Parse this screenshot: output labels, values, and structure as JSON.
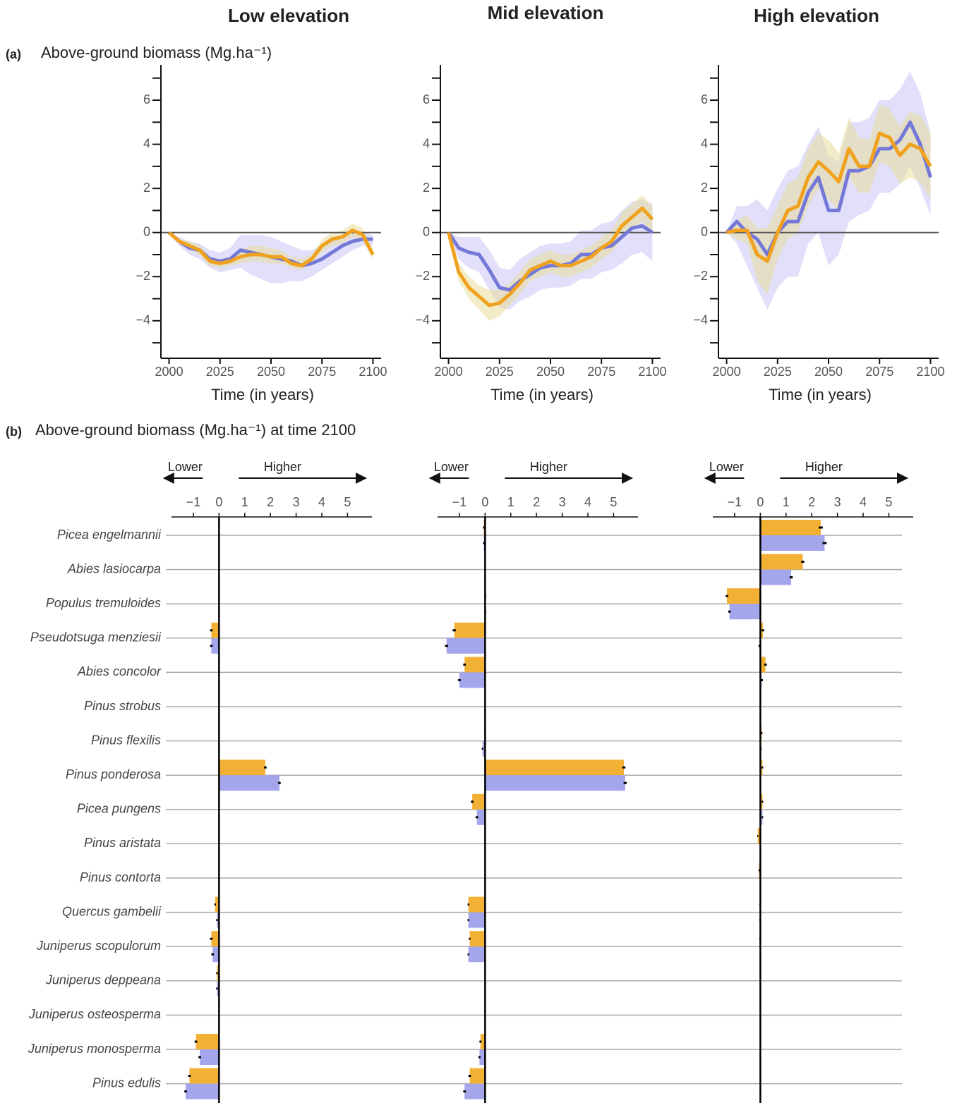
{
  "columns": [
    "Low elevation",
    "Mid elevation",
    "High elevation"
  ],
  "panels": {
    "a": {
      "label": "(a)",
      "title": "Above-ground biomass (Mg.ha⁻¹)"
    },
    "b": {
      "label": "(b)",
      "title": "Above-ground biomass (Mg.ha⁻¹) at time 2100"
    }
  },
  "chart_data": [
    {
      "type": "line",
      "xlabel": "Time (in years)",
      "xlim": [
        1996,
        2104
      ],
      "xticks": [
        2000,
        2025,
        2050,
        2075,
        2100
      ],
      "ylim": [
        -5.7,
        7.6
      ],
      "yticks": [
        {
          "value": -4,
          "label": "−4"
        },
        {
          "value": -2,
          "label": "−2"
        },
        0,
        2,
        4,
        6
      ],
      "yminor": [
        -5,
        -3,
        -1,
        1,
        3,
        5,
        7
      ],
      "hline": 0,
      "x": [
        2000,
        2005,
        2010,
        2015,
        2020,
        2025,
        2030,
        2035,
        2040,
        2045,
        2050,
        2055,
        2060,
        2065,
        2070,
        2075,
        2080,
        2085,
        2090,
        2095,
        2100
      ],
      "series": [
        {
          "color": "#7479d8",
          "band_color": "#c9c5f5",
          "values": [
            0,
            -0.4,
            -0.7,
            -0.8,
            -1.2,
            -1.3,
            -1.2,
            -0.8,
            -0.9,
            -1.0,
            -1.1,
            -1.2,
            -1.3,
            -1.5,
            -1.4,
            -1.2,
            -0.9,
            -0.6,
            -0.4,
            -0.3,
            -0.3
          ],
          "lower": [
            0,
            -0.6,
            -1.0,
            -1.2,
            -1.6,
            -1.8,
            -1.7,
            -1.6,
            -1.9,
            -2.1,
            -2.3,
            -2.3,
            -2.2,
            -2.2,
            -2.0,
            -1.7,
            -1.4,
            -1.1,
            -0.8,
            -0.6,
            -0.6
          ],
          "upper": [
            0,
            -0.2,
            -0.4,
            -0.5,
            -0.8,
            -0.9,
            -0.7,
            -0.1,
            -0.1,
            -0.1,
            -0.2,
            -0.4,
            -0.6,
            -0.8,
            -0.8,
            -0.6,
            -0.4,
            -0.2,
            0.0,
            0.0,
            -0.1
          ]
        },
        {
          "color": "#f0a21e",
          "band_color": "#e8dc9a",
          "values": [
            0,
            -0.4,
            -0.6,
            -0.8,
            -1.3,
            -1.4,
            -1.3,
            -1.1,
            -1.0,
            -1.0,
            -1.1,
            -1.1,
            -1.4,
            -1.5,
            -1.2,
            -0.6,
            -0.3,
            -0.2,
            0.1,
            -0.1,
            -1.0
          ],
          "lower": [
            0,
            -0.5,
            -0.8,
            -1.0,
            -1.5,
            -1.6,
            -1.5,
            -1.4,
            -1.3,
            -1.3,
            -1.4,
            -1.4,
            -1.6,
            -1.7,
            -1.4,
            -0.9,
            -0.6,
            -0.5,
            -0.2,
            -0.4,
            -1.2
          ],
          "upper": [
            0,
            -0.3,
            -0.4,
            -0.6,
            -1.1,
            -1.2,
            -1.1,
            -0.8,
            -0.6,
            -0.6,
            -0.7,
            -0.8,
            -1.1,
            -1.2,
            -1.0,
            -0.3,
            0.0,
            0.1,
            0.4,
            0.2,
            -0.8
          ]
        }
      ]
    },
    {
      "type": "line",
      "xlabel": "Time (in years)",
      "xlim": [
        1996,
        2104
      ],
      "xticks": [
        2000,
        2025,
        2050,
        2075,
        2100
      ],
      "ylim": [
        -5.7,
        7.6
      ],
      "yticks": [
        {
          "value": -4,
          "label": "−4"
        },
        {
          "value": -2,
          "label": "−2"
        },
        0,
        2,
        4,
        6
      ],
      "yminor": [
        -5,
        -3,
        -1,
        1,
        3,
        5,
        7
      ],
      "hline": 0,
      "x": [
        2000,
        2005,
        2010,
        2015,
        2020,
        2025,
        2030,
        2035,
        2040,
        2045,
        2050,
        2055,
        2060,
        2065,
        2070,
        2075,
        2080,
        2085,
        2090,
        2095,
        2100
      ],
      "series": [
        {
          "color": "#7479d8",
          "band_color": "#c9c5f5",
          "values": [
            0,
            -0.7,
            -0.9,
            -1.0,
            -1.7,
            -2.5,
            -2.6,
            -2.2,
            -1.9,
            -1.6,
            -1.5,
            -1.5,
            -1.4,
            -1.0,
            -1.0,
            -0.7,
            -0.6,
            -0.2,
            0.2,
            0.3,
            0.0
          ],
          "lower": [
            0,
            -1.2,
            -1.6,
            -1.8,
            -2.6,
            -3.4,
            -3.5,
            -3.1,
            -2.9,
            -2.6,
            -2.5,
            -2.5,
            -2.4,
            -2.1,
            -2.1,
            -1.8,
            -1.7,
            -1.4,
            -1.0,
            -0.9,
            -1.3
          ],
          "upper": [
            0,
            -0.2,
            -0.2,
            -0.2,
            -0.8,
            -1.6,
            -1.7,
            -1.2,
            -0.9,
            -0.6,
            -0.5,
            -0.5,
            -0.4,
            0.1,
            0.1,
            0.4,
            0.5,
            1.0,
            1.4,
            1.5,
            1.3
          ]
        },
        {
          "color": "#f0a21e",
          "band_color": "#e8dc9a",
          "values": [
            0,
            -1.8,
            -2.5,
            -2.9,
            -3.3,
            -3.2,
            -2.8,
            -2.3,
            -1.7,
            -1.5,
            -1.3,
            -1.5,
            -1.5,
            -1.3,
            -1.1,
            -0.7,
            -0.4,
            0.3,
            0.7,
            1.1,
            0.6
          ],
          "lower": [
            0,
            -2.2,
            -3.0,
            -3.5,
            -4.0,
            -3.8,
            -3.3,
            -2.8,
            -2.2,
            -2.0,
            -1.8,
            -2.0,
            -2.0,
            -1.8,
            -1.6,
            -1.2,
            -0.9,
            -0.3,
            0.1,
            0.5,
            0.0
          ],
          "upper": [
            0,
            -1.4,
            -2.0,
            -2.4,
            -2.6,
            -2.6,
            -2.3,
            -1.8,
            -1.2,
            -1.0,
            -0.8,
            -1.0,
            -1.0,
            -0.8,
            -0.6,
            -0.2,
            0.1,
            0.9,
            1.3,
            1.7,
            1.2
          ]
        }
      ]
    },
    {
      "type": "line",
      "xlabel": "Time (in years)",
      "xlim": [
        1996,
        2104
      ],
      "xticks": [
        2000,
        2025,
        2050,
        2075,
        2100
      ],
      "ylim": [
        -5.7,
        7.6
      ],
      "yticks": [
        {
          "value": -4,
          "label": "−4"
        },
        {
          "value": -2,
          "label": "−2"
        },
        0,
        2,
        4,
        6
      ],
      "yminor": [
        -5,
        -3,
        -1,
        1,
        3,
        5,
        7
      ],
      "hline": 0,
      "x": [
        2000,
        2005,
        2010,
        2015,
        2020,
        2025,
        2030,
        2035,
        2040,
        2045,
        2050,
        2055,
        2060,
        2065,
        2070,
        2075,
        2080,
        2085,
        2090,
        2095,
        2100
      ],
      "series": [
        {
          "color": "#7479d8",
          "band_color": "#c9c5f5",
          "values": [
            0,
            0.5,
            0.0,
            -0.3,
            -1.0,
            0.0,
            0.5,
            0.5,
            1.8,
            2.5,
            1.0,
            1.0,
            2.8,
            2.8,
            3.0,
            3.8,
            3.8,
            4.2,
            5.0,
            4.0,
            2.5
          ],
          "lower": [
            0,
            -0.5,
            -1.5,
            -2.5,
            -3.5,
            -2.5,
            -2.0,
            -2.0,
            -0.5,
            0.0,
            -1.5,
            -1.0,
            0.5,
            0.8,
            1.0,
            1.8,
            1.8,
            2.2,
            3.0,
            2.0,
            0.8
          ],
          "upper": [
            0,
            1.2,
            1.2,
            1.5,
            1.0,
            2.0,
            2.8,
            3.0,
            4.0,
            4.8,
            3.5,
            3.2,
            5.0,
            5.0,
            5.2,
            6.0,
            6.0,
            6.5,
            7.3,
            6.3,
            4.5
          ]
        },
        {
          "color": "#f0a21e",
          "band_color": "#e8dc9a",
          "values": [
            0,
            0.1,
            0.1,
            -1.0,
            -1.3,
            0.0,
            1.0,
            1.2,
            2.5,
            3.2,
            2.8,
            2.3,
            3.8,
            3.0,
            3.0,
            4.5,
            4.3,
            3.5,
            4.0,
            3.8,
            3.0
          ],
          "lower": [
            0,
            -0.3,
            -0.5,
            -2.2,
            -2.8,
            -1.2,
            -0.3,
            0.0,
            1.2,
            2.0,
            1.5,
            1.0,
            2.5,
            1.8,
            1.8,
            3.2,
            3.0,
            2.2,
            2.5,
            2.3,
            1.5
          ],
          "upper": [
            0,
            0.5,
            0.8,
            0.2,
            0.2,
            1.2,
            2.2,
            2.5,
            3.8,
            4.5,
            4.2,
            3.6,
            5.2,
            4.3,
            4.2,
            5.8,
            5.6,
            4.8,
            5.5,
            5.3,
            4.5
          ]
        }
      ]
    },
    {
      "type": "barh",
      "annotations": [
        "Lower",
        "Higher"
      ],
      "xlim": [
        -1.85,
        5.95
      ],
      "xticks": [
        {
          "value": -1,
          "label": "−1"
        },
        0,
        1,
        2,
        3,
        4,
        5
      ],
      "categories": [
        "Picea engelmannii",
        "Abies lasiocarpa",
        "Populus tremuloides",
        "Pseudotsuga menziesii",
        "Abies concolor",
        "Pinus strobus",
        "Pinus flexilis",
        "Pinus ponderosa",
        "Picea pungens",
        "Pinus aristata",
        "Pinus contorta",
        "Quercus gambelii",
        "Juniperus scopulorum",
        "Juniperus deppeana",
        "Juniperus osteosperma",
        "Juniperus monosperma",
        "Pinus edulis"
      ],
      "series": [
        {
          "color": "#f2b134",
          "values": [
            0,
            0,
            0,
            -0.3,
            0,
            0,
            0,
            1.8,
            0,
            0,
            0,
            -0.15,
            -0.3,
            -0.08,
            0,
            -0.9,
            -1.15
          ],
          "errors": [
            0,
            0,
            0,
            0.05,
            0,
            0,
            0,
            0.05,
            0,
            0,
            0,
            0.03,
            0.05,
            0.03,
            0,
            0.05,
            0.05
          ]
        },
        {
          "color": "#a4a6ec",
          "values": [
            0,
            0,
            0,
            -0.3,
            0,
            0,
            0,
            2.35,
            0,
            0,
            0,
            -0.08,
            -0.25,
            -0.08,
            0,
            -0.75,
            -1.3
          ],
          "errors": [
            0,
            0,
            0,
            0.05,
            0,
            0,
            0,
            0.05,
            0,
            0,
            0,
            0.03,
            0.05,
            0.03,
            0,
            0.05,
            0.05
          ]
        }
      ]
    },
    {
      "type": "barh",
      "annotations": [
        "Lower",
        "Higher"
      ],
      "xlim": [
        -1.85,
        5.95
      ],
      "xticks": [
        {
          "value": -1,
          "label": "−1"
        },
        0,
        1,
        2,
        3,
        4,
        5
      ],
      "series": [
        {
          "color": "#f2b134",
          "values": [
            -0.05,
            0,
            0.02,
            -1.2,
            -0.8,
            0,
            0,
            5.4,
            -0.5,
            0,
            0,
            -0.65,
            -0.6,
            0,
            0,
            -0.18,
            -0.6
          ],
          "errors": [
            0.03,
            0.02,
            0.02,
            0.06,
            0.05,
            0,
            0.03,
            0.06,
            0.05,
            0.02,
            0,
            0.03,
            0.03,
            0.02,
            0,
            0.04,
            0.05
          ]
        },
        {
          "color": "#a4a6ec",
          "values": [
            -0.05,
            0,
            0.02,
            -1.5,
            -1.0,
            0,
            -0.1,
            5.45,
            -0.32,
            0,
            0,
            -0.65,
            -0.65,
            0,
            0,
            -0.22,
            -0.8
          ],
          "errors": [
            0.03,
            0.02,
            0.02,
            0.06,
            0.05,
            0,
            0.03,
            0.06,
            0.05,
            0.02,
            0,
            0.03,
            0.03,
            0.02,
            0,
            0.04,
            0.05
          ]
        }
      ]
    },
    {
      "type": "barh",
      "annotations": [
        "Lower",
        "Higher"
      ],
      "xlim": [
        -1.85,
        5.95
      ],
      "xticks": [
        {
          "value": -1,
          "label": "−1"
        },
        0,
        1,
        2,
        3,
        4,
        5
      ],
      "series": [
        {
          "color": "#f2b134",
          "values": [
            2.35,
            1.65,
            -1.3,
            0.1,
            0.2,
            0,
            0.05,
            0.08,
            0.08,
            -0.1,
            -0.05,
            -0.02,
            -0.02,
            0,
            0,
            0,
            0
          ],
          "errors": [
            0.08,
            0.06,
            0.05,
            0.05,
            0.05,
            0,
            0.03,
            0.03,
            0.03,
            0.02,
            0.02,
            0.02,
            0.02,
            0,
            0,
            0,
            0
          ]
        },
        {
          "color": "#a4a6ec",
          "values": [
            2.5,
            1.2,
            -1.2,
            -0.02,
            0.05,
            0,
            0.02,
            0,
            0.08,
            0,
            0,
            -0.02,
            0,
            0,
            0,
            0,
            0
          ],
          "errors": [
            0.08,
            0.06,
            0.05,
            0.05,
            0.05,
            0,
            0.03,
            0.03,
            0.03,
            0.02,
            0.02,
            0.02,
            0.02,
            0,
            0,
            0,
            0
          ]
        }
      ]
    }
  ]
}
